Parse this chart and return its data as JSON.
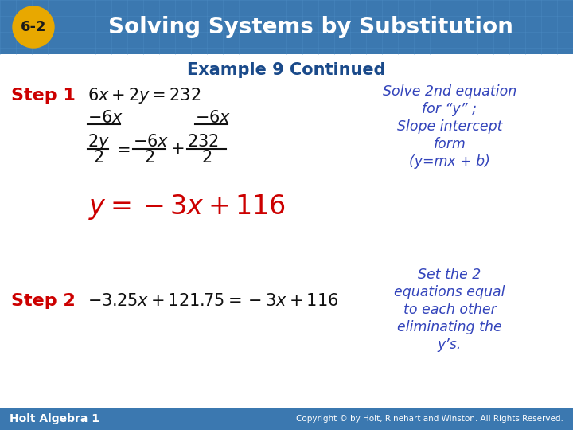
{
  "title_badge": "6-2",
  "title_text": "Solving Systems by Substitution",
  "subtitle": "Example 9 Continued",
  "header_bg": "#3b78b0",
  "header_text_color": "#ffffff",
  "badge_bg": "#e8a800",
  "badge_text_color": "#1a1a1a",
  "subtitle_color": "#1a4a8a",
  "step_color": "#cc0000",
  "body_bg": "#ffffff",
  "blue_italic_color": "#3344bb",
  "red_eq_color": "#cc0000",
  "footer_bg": "#3b78b0",
  "footer_text": "Holt Algebra 1",
  "footer_right": "Copyright © by Holt, Rinehart and Winston. All Rights Reserved.",
  "step1_label": "Step 1",
  "step2_label": "Step 2",
  "note1_line1": "Solve 2nd equation",
  "note1_line2": "for “y” ;",
  "note1_line3": "Slope intercept",
  "note1_line4": "form",
  "note1_line5": "(y=mx + b)",
  "note2_line1": "Set the 2",
  "note2_line2": "equations equal",
  "note2_line3": "to each other",
  "note2_line4": "eliminating the",
  "note2_line5": "y’s."
}
